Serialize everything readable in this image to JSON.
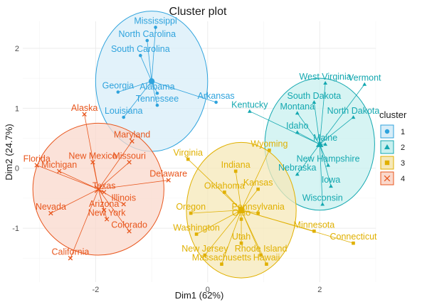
{
  "chart_data": {
    "type": "scatter",
    "title": "Cluster plot",
    "xlabel": "Dim1 (62%)",
    "ylabel": "Dim2 (24.7%)",
    "xlim": [
      -3.3,
      3.0
    ],
    "ylim": [
      -1.9,
      2.45
    ],
    "x_ticks": [
      -2,
      0,
      2
    ],
    "y_ticks": [
      -1,
      0,
      1,
      2
    ],
    "grid": true,
    "legend_title": "cluster",
    "legend_position": "right",
    "clusters": [
      {
        "id": 1,
        "label": "1",
        "color": "#2FA3DD",
        "fill": "#D8EDF8",
        "marker": "circle",
        "centroid": [
          -1.0,
          1.45
        ],
        "ellipse": {
          "rx": 1.0,
          "ry": 1.17
        }
      },
      {
        "id": 2,
        "label": "2",
        "color": "#14A8B0",
        "fill": "#C8F0EF",
        "marker": "triangle",
        "centroid": [
          2.0,
          0.4
        ],
        "ellipse": {
          "rx": 0.98,
          "ry": 1.1
        }
      },
      {
        "id": 3,
        "label": "3",
        "color": "#E0B000",
        "fill": "#F6E8B8",
        "marker": "square",
        "centroid": [
          0.6,
          -0.7
        ],
        "ellipse": {
          "rx": 0.98,
          "ry": 1.13
        }
      },
      {
        "id": 4,
        "label": "4",
        "color": "#E8561D",
        "fill": "#FAD8CC",
        "marker": "cross",
        "centroid": [
          -1.95,
          -0.35
        ],
        "ellipse": {
          "rx": 1.17,
          "ry": 1.1
        }
      }
    ],
    "points": [
      {
        "name": "Mississippi",
        "x": -0.93,
        "y": 2.35,
        "cluster": 1
      },
      {
        "name": "North Carolina",
        "x": -1.08,
        "y": 2.13,
        "cluster": 1
      },
      {
        "name": "South Carolina",
        "x": -1.2,
        "y": 1.88,
        "cluster": 1
      },
      {
        "name": "Georgia",
        "x": -1.6,
        "y": 1.27,
        "cluster": 1
      },
      {
        "name": "Alabama",
        "x": -0.9,
        "y": 1.25,
        "cluster": 1
      },
      {
        "name": "Arkansas",
        "x": 0.15,
        "y": 1.1,
        "cluster": 1
      },
      {
        "name": "Tennessee",
        "x": -0.9,
        "y": 1.05,
        "cluster": 1
      },
      {
        "name": "Louisiana",
        "x": -1.5,
        "y": 0.85,
        "cluster": 1
      },
      {
        "name": "West Virginia",
        "x": 2.1,
        "y": 1.42,
        "cluster": 2
      },
      {
        "name": "Vermont",
        "x": 2.8,
        "y": 1.4,
        "cluster": 2
      },
      {
        "name": "South Dakota",
        "x": 1.9,
        "y": 1.1,
        "cluster": 2
      },
      {
        "name": "Montana",
        "x": 1.6,
        "y": 0.92,
        "cluster": 2
      },
      {
        "name": "Kentucky",
        "x": 0.75,
        "y": 0.95,
        "cluster": 2
      },
      {
        "name": "North Dakota",
        "x": 2.6,
        "y": 0.85,
        "cluster": 2
      },
      {
        "name": "Idaho",
        "x": 1.6,
        "y": 0.6,
        "cluster": 2
      },
      {
        "name": "Maine",
        "x": 2.1,
        "y": 0.4,
        "cluster": 2
      },
      {
        "name": "New Hampshire",
        "x": 2.15,
        "y": 0.05,
        "cluster": 2
      },
      {
        "name": "Nebraska",
        "x": 1.6,
        "y": -0.1,
        "cluster": 2
      },
      {
        "name": "Iowa",
        "x": 2.2,
        "y": -0.3,
        "cluster": 2
      },
      {
        "name": "Wisconsin",
        "x": 2.05,
        "y": -0.6,
        "cluster": 2
      },
      {
        "name": "Wyoming",
        "x": 1.1,
        "y": 0.3,
        "cluster": 3
      },
      {
        "name": "Virginia",
        "x": -0.35,
        "y": 0.15,
        "cluster": 3
      },
      {
        "name": "Indiana",
        "x": 0.5,
        "y": -0.05,
        "cluster": 3
      },
      {
        "name": "Oklahoma",
        "x": 0.3,
        "y": -0.4,
        "cluster": 3
      },
      {
        "name": "Kansas",
        "x": 0.9,
        "y": -0.35,
        "cluster": 3
      },
      {
        "name": "Oregon",
        "x": -0.3,
        "y": -0.75,
        "cluster": 3
      },
      {
        "name": "Pennsylvania",
        "x": 0.9,
        "y": -0.75,
        "cluster": 3
      },
      {
        "name": "Ohio",
        "x": 0.6,
        "y": -0.85,
        "cluster": 3
      },
      {
        "name": "Minnesota",
        "x": 1.9,
        "y": -1.05,
        "cluster": 3
      },
      {
        "name": "Washington",
        "x": -0.2,
        "y": -1.1,
        "cluster": 3
      },
      {
        "name": "Connecticut",
        "x": 2.6,
        "y": -1.25,
        "cluster": 3
      },
      {
        "name": "Utah",
        "x": 0.6,
        "y": -1.25,
        "cluster": 3
      },
      {
        "name": "Rhode Island",
        "x": 0.95,
        "y": -1.45,
        "cluster": 3
      },
      {
        "name": "New Jersey",
        "x": -0.05,
        "y": -1.45,
        "cluster": 3
      },
      {
        "name": "Massachusetts",
        "x": 0.25,
        "y": -1.6,
        "cluster": 3
      },
      {
        "name": "Hawaii",
        "x": 1.05,
        "y": -1.6,
        "cluster": 3
      },
      {
        "name": "Alaska",
        "x": -2.2,
        "y": 0.9,
        "cluster": 4
      },
      {
        "name": "Maryland",
        "x": -1.35,
        "y": 0.45,
        "cluster": 4
      },
      {
        "name": "Florida",
        "x": -3.05,
        "y": 0.05,
        "cluster": 4
      },
      {
        "name": "New Mexico",
        "x": -2.05,
        "y": 0.1,
        "cluster": 4
      },
      {
        "name": "Missouri",
        "x": -1.4,
        "y": 0.1,
        "cluster": 4
      },
      {
        "name": "Michigan",
        "x": -2.65,
        "y": -0.05,
        "cluster": 4
      },
      {
        "name": "Delaware",
        "x": -0.7,
        "y": -0.2,
        "cluster": 4
      },
      {
        "name": "Texas",
        "x": -1.85,
        "y": -0.4,
        "cluster": 4
      },
      {
        "name": "Illinois",
        "x": -1.5,
        "y": -0.6,
        "cluster": 4
      },
      {
        "name": "Arizona",
        "x": -1.85,
        "y": -0.7,
        "cluster": 4
      },
      {
        "name": "Nevada",
        "x": -2.8,
        "y": -0.75,
        "cluster": 4
      },
      {
        "name": "New York",
        "x": -1.8,
        "y": -0.85,
        "cluster": 4
      },
      {
        "name": "Colorado",
        "x": -1.4,
        "y": -1.05,
        "cluster": 4
      },
      {
        "name": "California",
        "x": -2.45,
        "y": -1.5,
        "cluster": 4
      }
    ]
  }
}
